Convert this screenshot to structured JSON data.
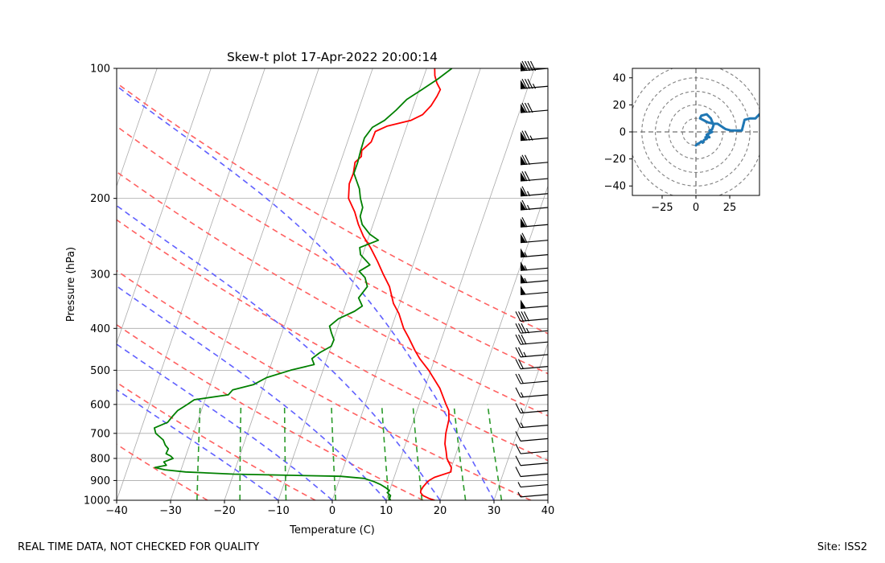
{
  "footer": {
    "left": "REAL TIME DATA, NOT CHECKED FOR QUALITY",
    "right": "Site: ISS2"
  },
  "chart_data": [
    {
      "type": "skew-t",
      "title": "Skew-t plot 17-Apr-2022 20:00:14",
      "xlabel": "Temperature (C)",
      "ylabel": "Pressure (hPa)",
      "xlim": [
        -40,
        40
      ],
      "ylim": [
        1000,
        100
      ],
      "y_scale": "log",
      "x_ticks": [
        -40,
        -30,
        -20,
        -10,
        0,
        10,
        20,
        30,
        40
      ],
      "y_ticks": [
        100,
        200,
        300,
        400,
        500,
        600,
        700,
        800,
        900,
        1000
      ],
      "colors": {
        "temperature": "#ff0000",
        "dewpoint": "#008000",
        "dry_adiabats": "#ff6060",
        "moist_adiabats": "#6060ff",
        "mixing_ratio": "#2a9a2a",
        "isotherms": "#aaaaaa",
        "isobars": "#aaaaaa",
        "wind_barbs": "#000000"
      },
      "series": [
        {
          "name": "Temperature",
          "points": [
            [
              1000,
              19
            ],
            [
              990,
              17.8
            ],
            [
              975,
              16.5
            ],
            [
              960,
              15.9
            ],
            [
              950,
              15.8
            ],
            [
              930,
              16
            ],
            [
              920,
              16.2
            ],
            [
              910,
              16.4
            ],
            [
              900,
              16.7
            ],
            [
              885,
              17.5
            ],
            [
              860,
              20.2
            ],
            [
              840,
              20
            ],
            [
              820,
              19.3
            ],
            [
              800,
              18.6
            ],
            [
              770,
              18
            ],
            [
              740,
              17.3
            ],
            [
              700,
              16.8
            ],
            [
              650,
              16.5
            ],
            [
              620,
              15.9
            ],
            [
              600,
              15
            ],
            [
              550,
              12.8
            ],
            [
              500,
              9.6
            ],
            [
              470,
              7.2
            ],
            [
              450,
              5.8
            ],
            [
              420,
              3.8
            ],
            [
              400,
              2.3
            ],
            [
              370,
              0.5
            ],
            [
              350,
              -1.2
            ],
            [
              320,
              -3
            ],
            [
              300,
              -4.9
            ],
            [
              280,
              -6.8
            ],
            [
              260,
              -9
            ],
            [
              245,
              -11
            ],
            [
              230,
              -12.7
            ],
            [
              215,
              -14.2
            ],
            [
              200,
              -16.2
            ],
            [
              185,
              -17
            ],
            [
              175,
              -16.9
            ],
            [
              165,
              -17.3
            ],
            [
              160,
              -16.5
            ],
            [
              155,
              -16.8
            ],
            [
              148,
              -15.6
            ],
            [
              140,
              -15.5
            ],
            [
              136,
              -13.6
            ],
            [
              132,
              -9.6
            ],
            [
              128,
              -7.8
            ],
            [
              122,
              -6.8
            ],
            [
              116,
              -6.3
            ],
            [
              112,
              -6.1
            ],
            [
              108,
              -7.2
            ],
            [
              104,
              -8
            ],
            [
              100,
              -8.5
            ]
          ]
        },
        {
          "name": "Dewpoint",
          "points": [
            [
              1000,
              10.8
            ],
            [
              990,
              10.5
            ],
            [
              975,
              10.5
            ],
            [
              960,
              9.7
            ],
            [
              950,
              10
            ],
            [
              935,
              9.1
            ],
            [
              920,
              8
            ],
            [
              905,
              6.5
            ],
            [
              890,
              4.5
            ],
            [
              880,
              0
            ],
            [
              870,
              -20
            ],
            [
              860,
              -29
            ],
            [
              850,
              -33
            ],
            [
              840,
              -35
            ],
            [
              830,
              -33
            ],
            [
              815,
              -33.7
            ],
            [
              800,
              -32.2
            ],
            [
              790,
              -32.8
            ],
            [
              780,
              -33.8
            ],
            [
              760,
              -33.7
            ],
            [
              745,
              -34.5
            ],
            [
              725,
              -35.2
            ],
            [
              700,
              -37
            ],
            [
              680,
              -37.6
            ],
            [
              660,
              -35.5
            ],
            [
              640,
              -35
            ],
            [
              620,
              -34.4
            ],
            [
              600,
              -33
            ],
            [
              585,
              -32
            ],
            [
              570,
              -26
            ],
            [
              555,
              -25.5
            ],
            [
              540,
              -22
            ],
            [
              520,
              -20
            ],
            [
              500,
              -16
            ],
            [
              485,
              -12
            ],
            [
              470,
              -12.8
            ],
            [
              455,
              -11.7
            ],
            [
              440,
              -10
            ],
            [
              425,
              -9.9
            ],
            [
              410,
              -10.8
            ],
            [
              395,
              -11.6
            ],
            [
              380,
              -10.4
            ],
            [
              365,
              -7.9
            ],
            [
              355,
              -6.8
            ],
            [
              340,
              -8
            ],
            [
              320,
              -7.1
            ],
            [
              305,
              -8.1
            ],
            [
              295,
              -9.6
            ],
            [
              285,
              -8
            ],
            [
              270,
              -10.4
            ],
            [
              260,
              -11
            ],
            [
              250,
              -8
            ],
            [
              242,
              -10
            ],
            [
              230,
              -12
            ],
            [
              220,
              -12.9
            ],
            [
              210,
              -13
            ],
            [
              200,
              -14
            ],
            [
              190,
              -14.8
            ],
            [
              175,
              -16.8
            ],
            [
              165,
              -16.8
            ],
            [
              155,
              -17
            ],
            [
              145,
              -17.1
            ],
            [
              137,
              -16.3
            ],
            [
              132,
              -14.5
            ],
            [
              125,
              -13
            ],
            [
              118,
              -11.7
            ],
            [
              112,
              -9.5
            ],
            [
              106,
              -7.3
            ],
            [
              100,
              -5.3
            ]
          ]
        }
      ],
      "dry_adiabats_theta_K": [
        250,
        270,
        290,
        310,
        330,
        350,
        370,
        390
      ],
      "moist_adiabats_theta_w_C": [
        -10,
        0,
        10,
        20,
        30
      ],
      "mixing_ratios_gkg": [
        0.5,
        1,
        2,
        4,
        8,
        12,
        20,
        30
      ],
      "wind_barbs": [
        {
          "p": 100,
          "speed_kt": 90
        },
        {
          "p": 110,
          "speed_kt": 85
        },
        {
          "p": 125,
          "speed_kt": 80
        },
        {
          "p": 145,
          "speed_kt": 75
        },
        {
          "p": 165,
          "speed_kt": 72
        },
        {
          "p": 180,
          "speed_kt": 70
        },
        {
          "p": 195,
          "speed_kt": 68
        },
        {
          "p": 210,
          "speed_kt": 65
        },
        {
          "p": 230,
          "speed_kt": 62
        },
        {
          "p": 250,
          "speed_kt": 60
        },
        {
          "p": 270,
          "speed_kt": 58
        },
        {
          "p": 290,
          "speed_kt": 56
        },
        {
          "p": 310,
          "speed_kt": 55
        },
        {
          "p": 330,
          "speed_kt": 53
        },
        {
          "p": 355,
          "speed_kt": 52
        },
        {
          "p": 380,
          "speed_kt": 40
        },
        {
          "p": 405,
          "speed_kt": 35
        },
        {
          "p": 430,
          "speed_kt": 30
        },
        {
          "p": 460,
          "speed_kt": 25
        },
        {
          "p": 490,
          "speed_kt": 22
        },
        {
          "p": 530,
          "speed_kt": 20
        },
        {
          "p": 570,
          "speed_kt": 18
        },
        {
          "p": 620,
          "speed_kt": 15
        },
        {
          "p": 670,
          "speed_kt": 15
        },
        {
          "p": 720,
          "speed_kt": 12
        },
        {
          "p": 770,
          "speed_kt": 12
        },
        {
          "p": 820,
          "speed_kt": 10
        },
        {
          "p": 870,
          "speed_kt": 10
        },
        {
          "p": 920,
          "speed_kt": 8
        },
        {
          "p": 970,
          "speed_kt": 7
        }
      ]
    },
    {
      "type": "line",
      "subtype": "hodograph",
      "xlim": [
        -47,
        47
      ],
      "ylim": [
        -47,
        47
      ],
      "x_ticks": [
        -25,
        0,
        25
      ],
      "y_ticks": [
        -40,
        -20,
        0,
        20,
        40
      ],
      "ring_radii": [
        10,
        20,
        30,
        40,
        50
      ],
      "line_color": "#1f77b4",
      "points": [
        [
          0,
          -10
        ],
        [
          1,
          -9
        ],
        [
          3,
          -8
        ],
        [
          4,
          -7
        ],
        [
          5,
          -8
        ],
        [
          6,
          -6
        ],
        [
          8,
          -5
        ],
        [
          7,
          -4
        ],
        [
          9,
          -4
        ],
        [
          8,
          -3
        ],
        [
          10,
          -4
        ],
        [
          8,
          -2
        ],
        [
          12,
          0
        ],
        [
          10,
          1
        ],
        [
          12,
          2
        ],
        [
          13,
          5
        ],
        [
          11,
          10
        ],
        [
          8,
          13
        ],
        [
          4,
          12
        ],
        [
          3,
          10
        ],
        [
          5,
          9
        ],
        [
          7,
          8
        ],
        [
          9,
          7
        ],
        [
          13,
          6
        ],
        [
          16,
          6
        ],
        [
          19,
          4
        ],
        [
          22,
          2
        ],
        [
          26,
          1
        ],
        [
          30,
          1
        ],
        [
          34,
          1
        ],
        [
          35,
          5
        ],
        [
          36,
          9
        ],
        [
          40,
          10
        ],
        [
          44,
          10
        ],
        [
          47,
          13
        ]
      ]
    }
  ]
}
